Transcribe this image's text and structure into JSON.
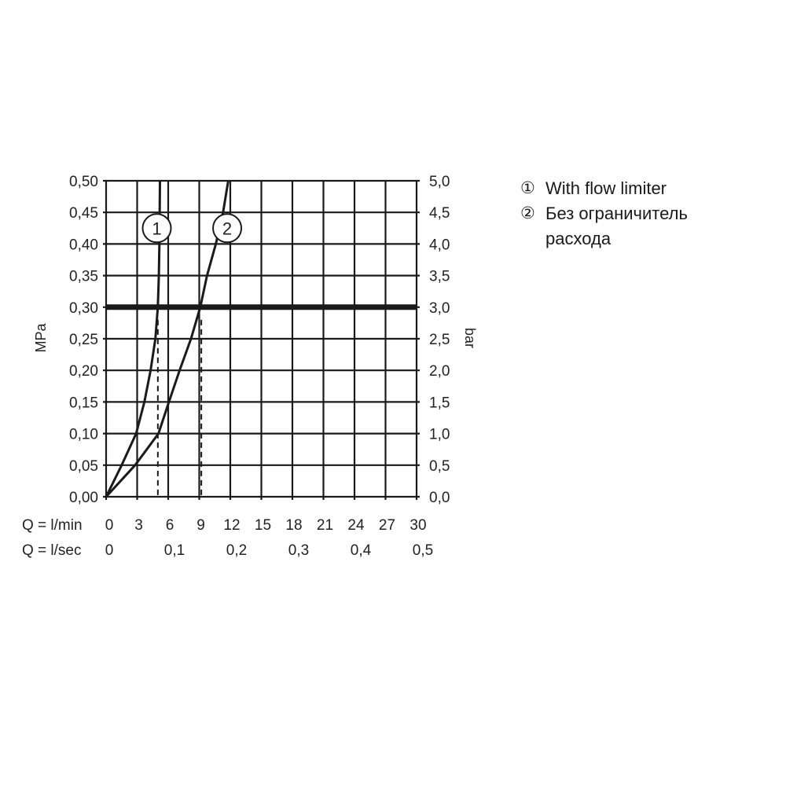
{
  "chart_data": {
    "type": "line",
    "x_axis": {
      "label": "Q = l/min",
      "range": [
        0,
        30
      ],
      "ticks": [
        "0",
        "3",
        "6",
        "9",
        "12",
        "15",
        "18",
        "21",
        "24",
        "27",
        "30"
      ],
      "secondary_label": "Q = l/sec",
      "secondary_ticks": [
        "0",
        "0,1",
        "0,2",
        "0,3",
        "0,4",
        "0,5"
      ]
    },
    "y_axis_left": {
      "label": "MPa",
      "range": [
        0,
        0.5
      ],
      "ticks": [
        "0,00",
        "0,05",
        "0,10",
        "0,15",
        "0,20",
        "0,25",
        "0,30",
        "0,35",
        "0,40",
        "0,45",
        "0,50"
      ]
    },
    "y_axis_right": {
      "label": "bar",
      "range": [
        0,
        5
      ],
      "ticks": [
        "0,0",
        "0,5",
        "1,0",
        "1,5",
        "2,0",
        "2,5",
        "3,0",
        "3,5",
        "4,0",
        "4,5",
        "5,0"
      ]
    },
    "grid": true,
    "reference_line": {
      "y": 0.3
    },
    "series": [
      {
        "marker_label": "1",
        "marker_at": [
          4.9,
          0.425
        ],
        "drop_line_x": 5.0,
        "points": [
          [
            0,
            0
          ],
          [
            1.5,
            0.05
          ],
          [
            2.9,
            0.1
          ],
          [
            3.7,
            0.15
          ],
          [
            4.3,
            0.2
          ],
          [
            4.76,
            0.25
          ],
          [
            5.0,
            0.3
          ],
          [
            5.1,
            0.35
          ],
          [
            5.15,
            0.4
          ],
          [
            5.2,
            0.5
          ]
        ]
      },
      {
        "marker_label": "2",
        "marker_at": [
          11.7,
          0.425
        ],
        "drop_line_x": 9.2,
        "points": [
          [
            0,
            0
          ],
          [
            2.8,
            0.05
          ],
          [
            5.06,
            0.1
          ],
          [
            6.07,
            0.15
          ],
          [
            7.1,
            0.2
          ],
          [
            8.2,
            0.25
          ],
          [
            9.1,
            0.3
          ],
          [
            9.75,
            0.35
          ],
          [
            10.6,
            0.4
          ],
          [
            11.3,
            0.45
          ],
          [
            11.8,
            0.5
          ]
        ]
      }
    ],
    "legend": [
      {
        "num": "①",
        "text": "With flow limiter"
      },
      {
        "num": "②",
        "text": "Без ограничитель расхода"
      }
    ],
    "legend_placement": "right",
    "line_color": "#1a1a1a"
  }
}
